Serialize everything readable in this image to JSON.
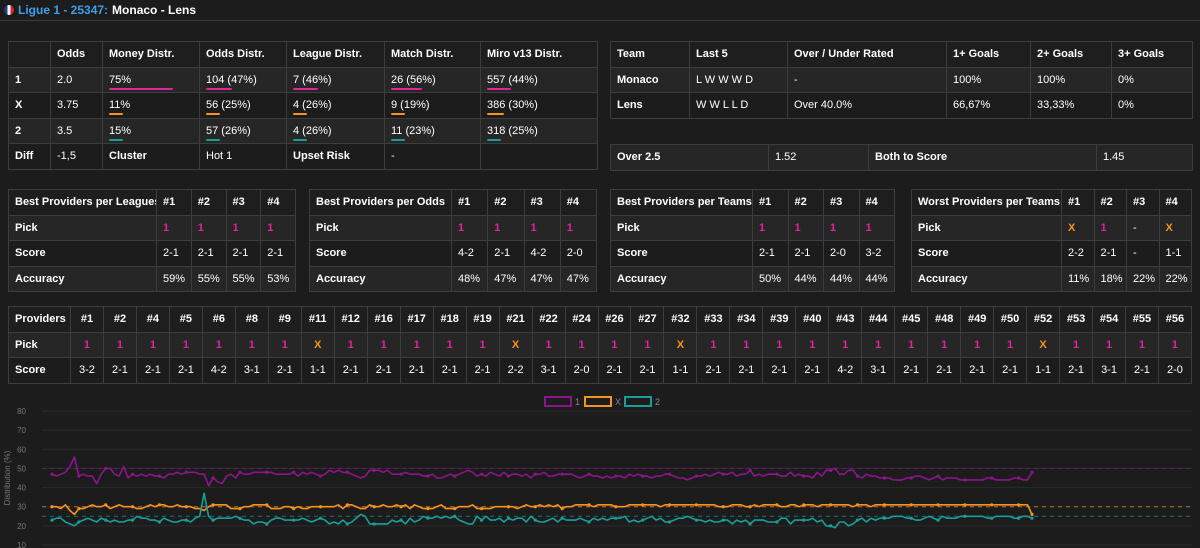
{
  "header": {
    "league": "Ligue 1 - 25347:",
    "match": "Monaco - Lens"
  },
  "colors": {
    "pick1": "#e0249a",
    "pickX": "#f7931e",
    "series1": "#8e148e",
    "seriesX": "#f7931e",
    "series2": "#1a9e9a"
  },
  "odds_table": {
    "headers": [
      "",
      "Odds",
      "Money Distr.",
      "Odds Distr.",
      "League Distr.",
      "Match Distr.",
      "Miro v13 Distr."
    ],
    "rows": [
      {
        "label": "1",
        "odds": "2.0",
        "money": "75%",
        "odds_d": "104 (47%)",
        "league": "7 (46%)",
        "match": "26 (56%)",
        "miro": "557 (44%)",
        "bars": [
          0.75,
          0.47,
          0.46,
          0.56,
          0.44
        ]
      },
      {
        "label": "X",
        "odds": "3.75",
        "money": "11%",
        "odds_d": "56 (25%)",
        "league": "4 (26%)",
        "match": "9 (19%)",
        "miro": "386 (30%)",
        "bars": [
          0.11,
          0.25,
          0.26,
          0.19,
          0.3
        ]
      },
      {
        "label": "2",
        "odds": "3.5",
        "money": "15%",
        "odds_d": "57 (26%)",
        "league": "4 (26%)",
        "match": "11 (23%)",
        "miro": "318 (25%)",
        "bars": [
          0.15,
          0.26,
          0.26,
          0.23,
          0.25
        ]
      }
    ],
    "diff_row": {
      "label": "Diff",
      "value": "-1,5",
      "cluster_label": "Cluster",
      "cluster_value": "Hot 1",
      "upset_label": "Upset Risk",
      "upset_value": "-"
    }
  },
  "team_table": {
    "headers": [
      "Team",
      "Last 5",
      "Over / Under Rated",
      "1+ Goals",
      "2+ Goals",
      "3+ Goals"
    ],
    "rows": [
      {
        "team": "Monaco",
        "last5": "L W W W D",
        "rated": "-",
        "g1": "100%",
        "g2": "100%",
        "g3": "0%"
      },
      {
        "team": "Lens",
        "last5": "W W L L D",
        "rated": "Over 40.0%",
        "g1": "66,67%",
        "g2": "33,33%",
        "g3": "0%"
      }
    ]
  },
  "over_table": {
    "over_label": "Over 2.5",
    "over_value": "1.52",
    "btts_label": "Both to Score",
    "btts_value": "1.45"
  },
  "best_leagues": {
    "title": "Best Providers per Leagues",
    "cols": [
      "#1",
      "#2",
      "#3",
      "#4"
    ],
    "pick": [
      "1",
      "1",
      "1",
      "1"
    ],
    "score": [
      "2-1",
      "2-1",
      "2-1",
      "2-1"
    ],
    "accuracy": [
      "59%",
      "55%",
      "55%",
      "53%"
    ]
  },
  "best_odds": {
    "title": "Best Providers per Odds",
    "cols": [
      "#1",
      "#2",
      "#3",
      "#4"
    ],
    "pick": [
      "1",
      "1",
      "1",
      "1"
    ],
    "score": [
      "4-2",
      "2-1",
      "4-2",
      "2-0"
    ],
    "accuracy": [
      "48%",
      "47%",
      "47%",
      "47%"
    ]
  },
  "best_teams": {
    "title": "Best Providers per Teams",
    "cols": [
      "#1",
      "#2",
      "#3",
      "#4"
    ],
    "pick": [
      "1",
      "1",
      "1",
      "1"
    ],
    "score": [
      "2-1",
      "2-1",
      "2-0",
      "3-2"
    ],
    "accuracy": [
      "50%",
      "44%",
      "44%",
      "44%"
    ]
  },
  "worst_teams": {
    "title": "Worst Providers per Teams",
    "cols": [
      "#1",
      "#2",
      "#3",
      "#4"
    ],
    "pick": [
      "X",
      "1",
      "-",
      "X"
    ],
    "score": [
      "2-2",
      "2-1",
      "-",
      "1-1"
    ],
    "accuracy": [
      "11%",
      "18%",
      "22%",
      "22%"
    ]
  },
  "row_labels": {
    "pick": "Pick",
    "score": "Score",
    "accuracy": "Accuracy",
    "providers": "Providers"
  },
  "providers": {
    "ids": [
      "#1",
      "#2",
      "#4",
      "#5",
      "#6",
      "#8",
      "#9",
      "#11",
      "#12",
      "#16",
      "#17",
      "#18",
      "#19",
      "#21",
      "#22",
      "#24",
      "#26",
      "#27",
      "#32",
      "#33",
      "#34",
      "#39",
      "#40",
      "#43",
      "#44",
      "#45",
      "#48",
      "#49",
      "#50",
      "#52",
      "#53",
      "#54",
      "#55",
      "#56"
    ],
    "picks": [
      "1",
      "1",
      "1",
      "1",
      "1",
      "1",
      "1",
      "X",
      "1",
      "1",
      "1",
      "1",
      "1",
      "X",
      "1",
      "1",
      "1",
      "1",
      "X",
      "1",
      "1",
      "1",
      "1",
      "1",
      "1",
      "1",
      "1",
      "1",
      "1",
      "X",
      "1",
      "1",
      "1",
      "1"
    ],
    "scores": [
      "3-2",
      "2-1",
      "2-1",
      "2-1",
      "4-2",
      "3-1",
      "2-1",
      "1-1",
      "2-1",
      "2-1",
      "2-1",
      "2-1",
      "2-1",
      "2-2",
      "3-1",
      "2-0",
      "2-1",
      "2-1",
      "1-1",
      "2-1",
      "2-1",
      "2-1",
      "2-1",
      "4-2",
      "3-1",
      "2-1",
      "2-1",
      "2-1",
      "2-1",
      "1-1",
      "2-1",
      "3-1",
      "2-1",
      "2-0"
    ]
  },
  "chart_data": {
    "type": "line",
    "ylabel": "Distribution (%)",
    "ylim": [
      10,
      80
    ],
    "yticks": [
      10,
      20,
      30,
      40,
      50,
      60,
      70,
      80
    ],
    "legend_position": "top",
    "reference_lines": [
      50,
      30,
      25
    ],
    "series": [
      {
        "name": "1",
        "color": "#8e148e",
        "values": [
          47,
          46,
          47,
          48,
          51,
          56,
          46,
          47,
          46,
          46,
          42,
          47,
          50,
          50,
          47,
          46,
          51,
          45,
          47,
          46,
          47,
          46,
          47,
          46,
          46,
          45,
          47,
          47,
          48,
          47,
          48,
          48,
          48,
          47,
          47,
          41,
          45,
          43,
          42,
          46,
          47,
          45,
          48,
          47,
          47,
          48,
          48,
          48,
          48,
          48,
          47,
          47,
          47,
          47,
          48,
          46,
          48,
          47,
          48,
          47,
          46,
          47,
          49,
          48,
          49,
          48,
          48,
          47,
          46,
          45,
          46,
          49,
          49,
          49,
          48,
          49,
          47,
          47,
          47,
          48,
          47,
          47,
          47,
          46,
          46,
          47,
          45,
          45,
          46,
          47,
          46,
          47,
          48,
          49,
          48,
          46,
          47,
          46,
          48,
          47,
          46,
          48,
          46,
          47,
          47,
          46,
          47,
          45,
          47,
          47,
          48,
          46,
          46,
          47,
          47,
          47,
          47,
          46,
          45,
          46,
          47,
          46,
          46,
          45,
          46,
          45,
          46,
          46,
          45,
          47,
          46,
          47,
          46,
          46,
          45,
          46,
          46,
          47,
          47,
          46,
          45,
          45,
          44,
          45,
          46,
          46,
          47,
          46,
          47,
          48,
          47,
          47,
          48,
          46,
          47,
          47,
          49,
          46,
          47,
          46,
          47,
          47,
          47,
          46,
          46,
          48,
          46,
          47,
          46,
          46,
          45,
          48,
          46,
          49,
          49,
          50,
          47,
          47,
          49,
          49,
          46,
          45,
          47,
          46,
          46,
          45,
          45,
          45,
          44,
          44,
          44,
          45,
          45,
          46,
          46,
          45,
          44,
          45,
          46,
          44,
          45,
          45,
          45,
          44,
          44,
          44,
          44,
          44,
          44,
          45,
          45,
          44,
          44,
          44,
          44,
          45,
          45,
          44,
          44,
          48
        ]
      },
      {
        "name": "X",
        "color": "#f7931e",
        "values": [
          30,
          30,
          29,
          31,
          28,
          26,
          29,
          29,
          30,
          31,
          30,
          30,
          31,
          29,
          30,
          31,
          30,
          30,
          30,
          29,
          29,
          30,
          31,
          30,
          31,
          31,
          30,
          30,
          31,
          30,
          30,
          30,
          29,
          29,
          28,
          30,
          31,
          31,
          31,
          31,
          29,
          29,
          29,
          30,
          30,
          31,
          31,
          31,
          31,
          29,
          29,
          29,
          30,
          30,
          29,
          30,
          29,
          29,
          30,
          30,
          30,
          30,
          30,
          30,
          31,
          29,
          31,
          31,
          30,
          29,
          29,
          31,
          30,
          30,
          31,
          30,
          30,
          31,
          30,
          31,
          29,
          31,
          30,
          29,
          29,
          29,
          30,
          31,
          29,
          29,
          29,
          30,
          30,
          30,
          31,
          29,
          29,
          29,
          29,
          30,
          30,
          30,
          30,
          30,
          29,
          30,
          31,
          30,
          30,
          31,
          30,
          31,
          30,
          31,
          29,
          30,
          30,
          31,
          31,
          31,
          31,
          30,
          31,
          31,
          31,
          31,
          30,
          30,
          30,
          31,
          31,
          31,
          31,
          31,
          31,
          31,
          30,
          31,
          31,
          31,
          31,
          31,
          31,
          31,
          31,
          31,
          31,
          31,
          31,
          30,
          30,
          30,
          31,
          31,
          31,
          30,
          30,
          31,
          30,
          31,
          31,
          31,
          31,
          30,
          30,
          31,
          31,
          30,
          31,
          31,
          31,
          30,
          31,
          31,
          31,
          31,
          31,
          31,
          31,
          30,
          31,
          31,
          31,
          30,
          31,
          31,
          31,
          31,
          31,
          31,
          31,
          31,
          31,
          31,
          31,
          31,
          31,
          31,
          31,
          31,
          31,
          31,
          31,
          31,
          31,
          31,
          31,
          31,
          31,
          31,
          31,
          31,
          31,
          31,
          31,
          31,
          31,
          31,
          31,
          26
        ]
      },
      {
        "name": "2",
        "color": "#1a9e9a",
        "values": [
          23,
          24,
          24,
          22,
          21,
          20,
          22,
          23,
          24,
          23,
          22,
          24,
          23,
          22,
          23,
          22,
          22,
          23,
          23,
          25,
          24,
          24,
          23,
          23,
          22,
          24,
          23,
          22,
          22,
          23,
          23,
          22,
          24,
          25,
          37,
          25,
          23,
          24,
          24,
          24,
          24,
          25,
          24,
          23,
          23,
          21,
          22,
          22,
          21,
          23,
          24,
          24,
          23,
          23,
          23,
          23,
          24,
          23,
          22,
          23,
          24,
          23,
          21,
          22,
          21,
          23,
          21,
          22,
          24,
          26,
          25,
          21,
          21,
          21,
          21,
          21,
          23,
          22,
          23,
          21,
          24,
          22,
          23,
          25,
          24,
          24,
          25,
          24,
          25,
          24,
          25,
          23,
          22,
          21,
          21,
          25,
          23,
          25,
          23,
          23,
          24,
          22,
          24,
          23,
          24,
          24,
          22,
          25,
          23,
          22,
          22,
          23,
          24,
          22,
          24,
          23,
          23,
          23,
          24,
          23,
          22,
          24,
          23,
          24,
          23,
          24,
          24,
          24,
          25,
          22,
          23,
          22,
          23,
          24,
          25,
          23,
          24,
          22,
          22,
          23,
          24,
          24,
          25,
          24,
          23,
          23,
          22,
          23,
          22,
          22,
          23,
          23,
          21,
          23,
          22,
          23,
          21,
          23,
          23,
          23,
          22,
          22,
          22,
          24,
          24,
          21,
          23,
          23,
          23,
          23,
          24,
          22,
          23,
          20,
          20,
          19,
          22,
          22,
          20,
          21,
          23,
          24,
          22,
          24,
          23,
          24,
          24,
          24,
          25,
          25,
          25,
          24,
          24,
          23,
          23,
          24,
          25,
          24,
          23,
          25,
          24,
          24,
          24,
          25,
          25,
          25,
          25,
          25,
          25,
          24,
          24,
          25,
          25,
          25,
          25,
          24,
          24,
          25,
          25,
          24
        ]
      }
    ]
  }
}
